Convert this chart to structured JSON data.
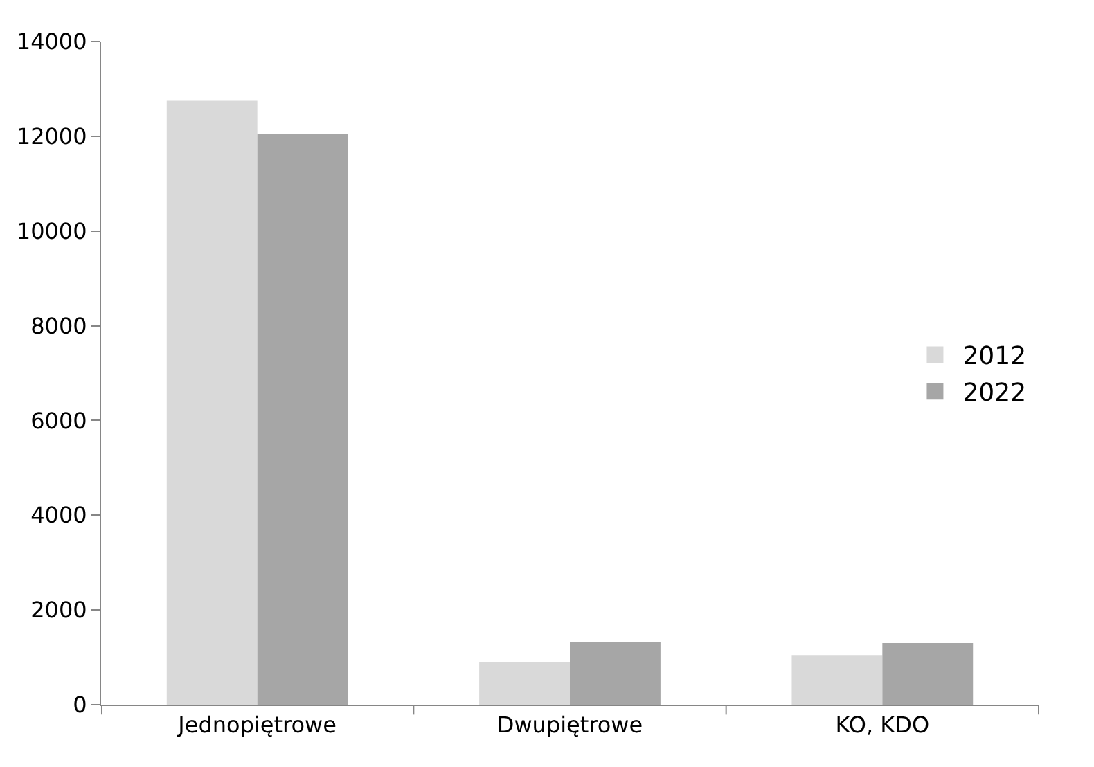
{
  "chart_data": {
    "type": "bar",
    "categories": [
      "Jednopiętrowe",
      "Dwupiętrowe",
      "KO, KDO"
    ],
    "series": [
      {
        "name": "2012",
        "color": "#d9d9d9",
        "values": [
          12750,
          900,
          1050
        ]
      },
      {
        "name": "2022",
        "color": "#a6a6a6",
        "values": [
          12050,
          1330,
          1300
        ]
      }
    ],
    "ylim": [
      0,
      14000
    ],
    "yticks": [
      0,
      2000,
      4000,
      6000,
      8000,
      10000,
      12000,
      14000
    ],
    "legend": "right"
  }
}
